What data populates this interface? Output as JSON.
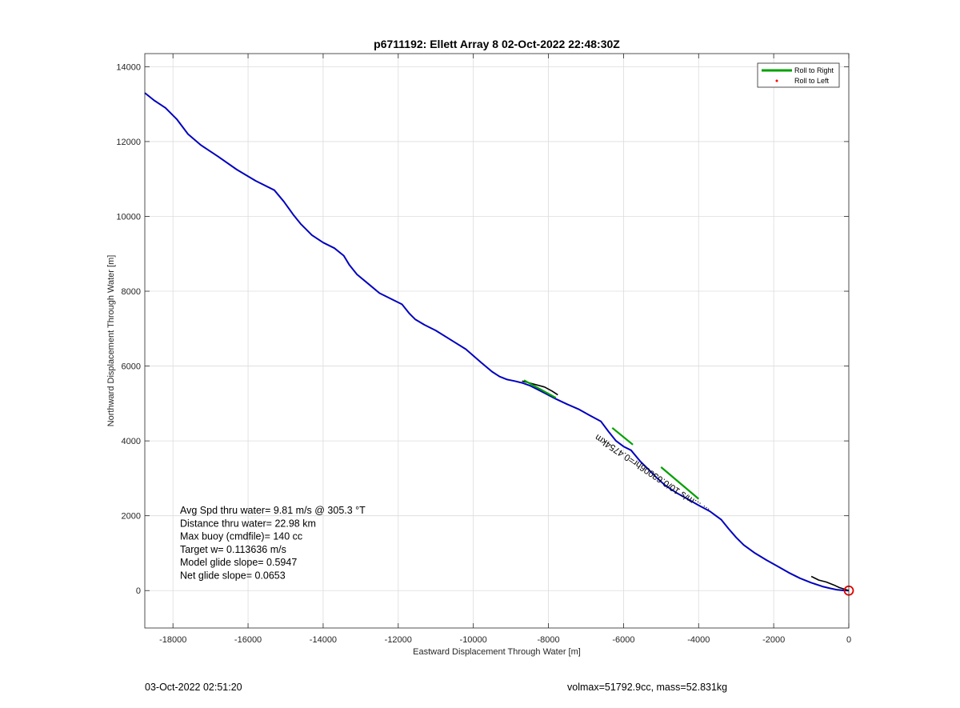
{
  "chart_data": {
    "type": "line",
    "title": "p6711192: Ellett Array 8 02-Oct-2022 22:48:30Z",
    "xlabel": "Eastward Displacement Through Water [m]",
    "ylabel": "Northward Displacement Through Water [m]",
    "xlim": [
      -18750,
      0
    ],
    "ylim": [
      -1000,
      14350
    ],
    "xticks": [
      -18000,
      -16000,
      -14000,
      -12000,
      -10000,
      -8000,
      -6000,
      -4000,
      -2000,
      0
    ],
    "yticks": [
      0,
      2000,
      4000,
      6000,
      8000,
      10000,
      12000,
      14000
    ],
    "grid": true,
    "legend_position": "top-right",
    "legend": [
      {
        "name": "Roll to Right",
        "color": "#00a000",
        "style": "line"
      },
      {
        "name": "Roll to Left",
        "color": "#ff0000",
        "style": "dot"
      }
    ],
    "series": [
      {
        "color": "#0000c0",
        "x": [
          -18750,
          -18500,
          -18200,
          -17900,
          -17600,
          -17250,
          -16800,
          -16300,
          -15800,
          -15300,
          -15050,
          -14800,
          -14600,
          -14300,
          -14000,
          -13700,
          -13450,
          -13300,
          -13100,
          -12800,
          -12500,
          -12200,
          -11900,
          -11700,
          -11550,
          -11300,
          -11000,
          -10600,
          -10200,
          -9800,
          -9500,
          -9300,
          -9100,
          -8900,
          -8700,
          -8500,
          -8300,
          -8100,
          -7800,
          -7500,
          -7200,
          -6900,
          -6600,
          -6400,
          -6200,
          -6000,
          -5800,
          -5550,
          -5300,
          -5100,
          -4900,
          -4600,
          -4300,
          -4000,
          -3700,
          -3400,
          -3200,
          -3000,
          -2800,
          -2500,
          -2200,
          -1900,
          -1600,
          -1300,
          -1000,
          -700,
          -500,
          -300,
          -150,
          0
        ],
        "y": [
          13300,
          13100,
          12900,
          12600,
          12200,
          11900,
          11600,
          11250,
          10950,
          10700,
          10400,
          10050,
          9800,
          9500,
          9300,
          9150,
          8950,
          8700,
          8450,
          8200,
          7950,
          7800,
          7650,
          7400,
          7250,
          7100,
          6950,
          6700,
          6450,
          6100,
          5850,
          5720,
          5640,
          5600,
          5550,
          5480,
          5380,
          5280,
          5120,
          4980,
          4850,
          4680,
          4520,
          4250,
          4000,
          3850,
          3750,
          3450,
          3200,
          3000,
          2820,
          2620,
          2450,
          2280,
          2120,
          1900,
          1650,
          1420,
          1220,
          1000,
          820,
          650,
          480,
          330,
          210,
          110,
          60,
          20,
          5,
          0
        ]
      },
      {
        "color": "#000000",
        "x": [
          -8700,
          -8400,
          -8100,
          -7900,
          -7750
        ],
        "y": [
          5600,
          5520,
          5440,
          5330,
          5230
        ]
      },
      {
        "name": "Roll to Right",
        "color": "#00a000",
        "segments": [
          {
            "x": [
              -8650,
              -7800
            ],
            "y": [
              5620,
              5150
            ]
          },
          {
            "x": [
              -6300,
              -5750
            ],
            "y": [
              4350,
              3900
            ]
          },
          {
            "x": [
              -5000,
              -4000
            ],
            "y": [
              3300,
              2450
            ]
          }
        ]
      },
      {
        "color": "#000000",
        "x": [
          -1000,
          -800,
          -600,
          -400,
          -250,
          -120,
          0
        ],
        "y": [
          380,
          280,
          230,
          150,
          80,
          40,
          0
        ]
      }
    ],
    "start_marker": {
      "x": 0,
      "y": 0,
      "color": "#e00000"
    },
    "curved_annotation": "... ...m/s 10/0.63006hr=0.4754km",
    "annotations": [
      "Avg Spd thru water=  9.81 m/s @ 305.3 °T",
      "Distance thru water= 22.98 km",
      "Max buoy (cmdfile)= 140 cc",
      "Target w= 0.113636 m/s",
      "Model glide slope= 0.5947",
      "Net glide slope= 0.0653"
    ]
  },
  "footer": {
    "timestamp": "03-Oct-2022 02:51:20",
    "summary": "volmax=51792.9cc, mass=52.831kg"
  }
}
